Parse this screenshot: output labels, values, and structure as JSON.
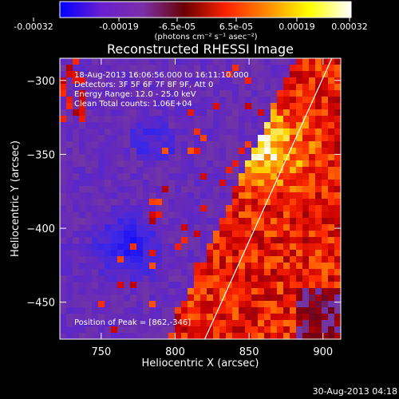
{
  "window": {
    "timestamp": "30-Aug-2013 04:18"
  },
  "colorbar": {
    "ticks": [
      "-0.00032",
      "-0.00019",
      "-6.5e-05",
      "6.5e-05",
      "0.00019",
      "0.00032"
    ],
    "range": [
      -0.00032,
      0.00032
    ],
    "units_label": "(photons cm⁻² s⁻¹ asec⁻²)",
    "colors": [
      "#0000ff",
      "#6a1fd0",
      "#7b2fa8",
      "#6a0000",
      "#ff2200",
      "#ff8c00",
      "#ffff00",
      "#ffffff"
    ]
  },
  "chart_data": {
    "type": "heatmap",
    "title": "Reconstructed RHESSI Image",
    "xlabel": "Heliocentric X (arcsec)",
    "ylabel": "Heliocentric Y (arcsec)",
    "xlim": [
      722,
      912
    ],
    "ylim": [
      -475,
      -285
    ],
    "x_ticks": [
      750,
      800,
      850,
      900
    ],
    "y_ticks": [
      -300,
      -350,
      -400,
      -450
    ],
    "x_tick_labels": [
      "750",
      "800",
      "850",
      "900"
    ],
    "y_tick_labels": [
      "−300",
      "−350",
      "−400",
      "−450"
    ],
    "annotations": [
      "18-Aug-2013 16:06:56.000 to 16:11:10.000",
      "Detectors: 3F 5F 6F 7F 8F 9F, Att 0",
      "Energy Range: 12.0 - 25.0 keV",
      "Clean     Total counts: 1.06E+04"
    ],
    "peak_label": "Position of Peak = [862,-346]",
    "peak": [
      862,
      -346
    ],
    "limb_line": [
      [
        820,
        -475
      ],
      [
        906,
        -285
      ]
    ],
    "grid": false
  }
}
